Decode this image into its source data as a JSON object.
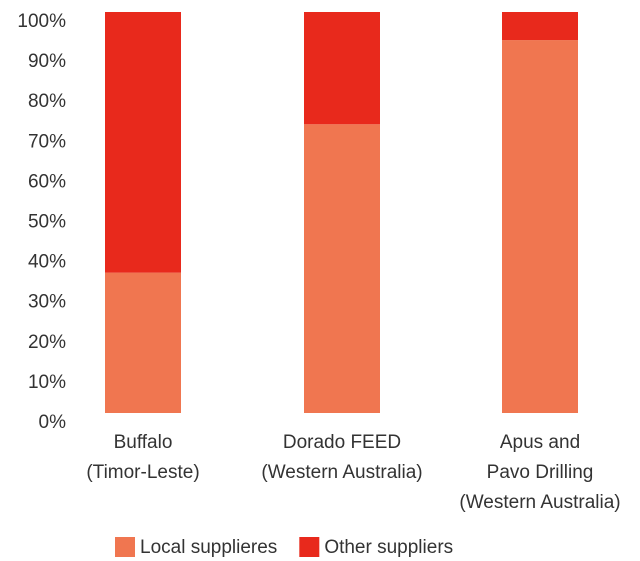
{
  "chart_data": {
    "type": "stacked_bar",
    "categories": [
      [
        "Buffalo",
        "(Timor-Leste)"
      ],
      [
        "Dorado FEED",
        "(Western Australia)"
      ],
      [
        "Apus and",
        "Pavo Drilling",
        "(Western Australia)"
      ]
    ],
    "series": [
      {
        "name": "Local supplieres",
        "color": "#f07650",
        "values": [
          35,
          72,
          93
        ]
      },
      {
        "name": "Other suppliers",
        "color": "#e8291c",
        "values": [
          65,
          28,
          7
        ]
      }
    ],
    "ylim": [
      0,
      100
    ],
    "yticks": [
      {
        "value": 0,
        "label": "0%"
      },
      {
        "value": 10,
        "label": "10%"
      },
      {
        "value": 20,
        "label": "20%"
      },
      {
        "value": 30,
        "label": "30%"
      },
      {
        "value": 40,
        "label": "40%"
      },
      {
        "value": 50,
        "label": "50%"
      },
      {
        "value": 60,
        "label": "60%"
      },
      {
        "value": 70,
        "label": "70%"
      },
      {
        "value": 80,
        "label": "80%"
      },
      {
        "value": 90,
        "label": "90%"
      },
      {
        "value": 100,
        "label": "100%"
      }
    ],
    "grid": false,
    "legend": "bottom"
  }
}
